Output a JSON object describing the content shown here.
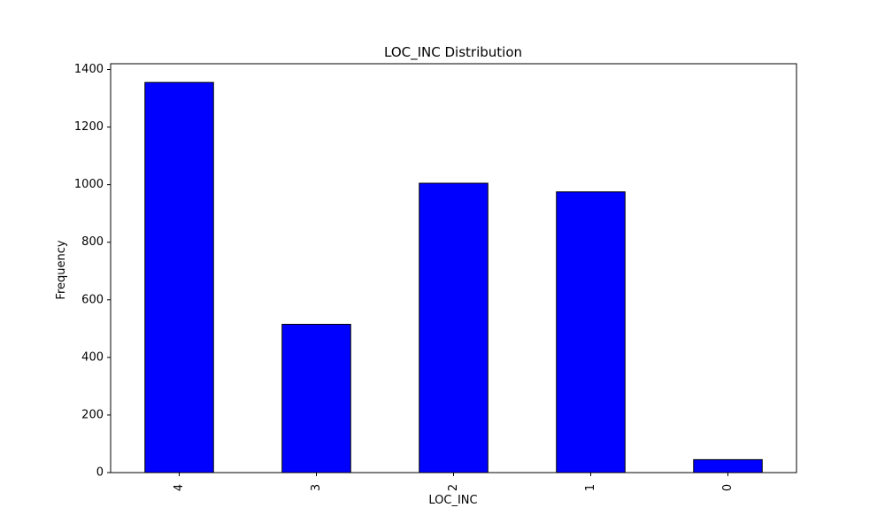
{
  "chart_data": {
    "type": "bar",
    "title": "LOC_INC Distribution",
    "xlabel": "LOC_INC",
    "ylabel": "Frequency",
    "categories": [
      "4",
      "3",
      "2",
      "1",
      "0"
    ],
    "values": [
      1355,
      515,
      1005,
      975,
      45
    ],
    "ylim": [
      0,
      1420
    ],
    "yticks": [
      0,
      200,
      400,
      600,
      800,
      1000,
      1200,
      1400
    ],
    "bar_color": "#0000ff",
    "edge_color": "#000000",
    "grid": false,
    "x_tick_rotation": "vertical"
  }
}
